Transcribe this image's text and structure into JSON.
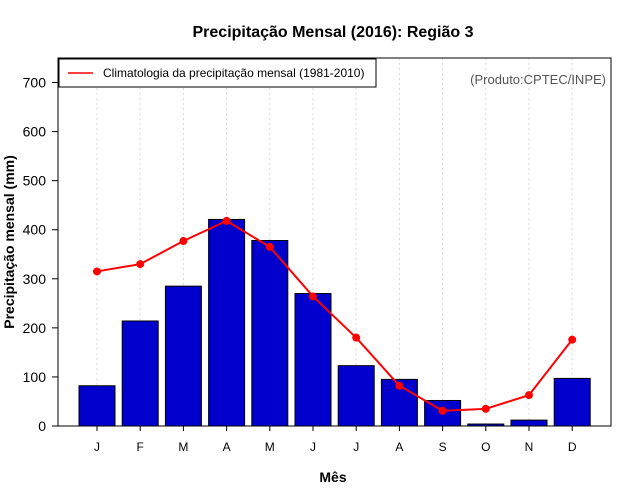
{
  "chart_data": {
    "type": "bar",
    "title": "Precipitação Mensal (2016): Região 3",
    "xlabel": "Mês",
    "ylabel": "Precipitação mensal (mm)",
    "ylim": [
      0,
      750
    ],
    "yticks": [
      0,
      100,
      200,
      300,
      400,
      500,
      600,
      700
    ],
    "categories": [
      "J",
      "F",
      "M",
      "A",
      "M",
      "J",
      "J",
      "A",
      "S",
      "O",
      "N",
      "D"
    ],
    "series": [
      {
        "name": "Precipitação mensal 2016",
        "type": "bar",
        "color": "#0000cc",
        "values": [
          82,
          214,
          285,
          421,
          378,
          270,
          123,
          95,
          52,
          4,
          12,
          97
        ]
      },
      {
        "name": "Climatologia da precipitação mensal (1981-2010)",
        "type": "line",
        "color": "#ff0000",
        "values": [
          315,
          330,
          377,
          418,
          365,
          264,
          180,
          82,
          31,
          35,
          63,
          176
        ]
      }
    ],
    "legend": {
      "label": "Climatologia da precipitação mensal (1981-2010)",
      "position": "top-left"
    },
    "annotation": "(Produto:CPTEC/INPE)",
    "grid": "vertical dotted"
  }
}
